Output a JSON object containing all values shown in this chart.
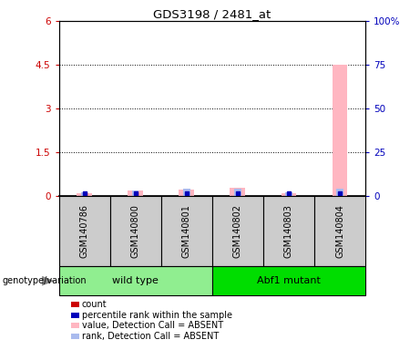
{
  "title": "GDS3198 / 2481_at",
  "samples": [
    "GSM140786",
    "GSM140800",
    "GSM140801",
    "GSM140802",
    "GSM140803",
    "GSM140804"
  ],
  "groups": [
    {
      "name": "wild type",
      "indices": [
        0,
        1,
        2
      ],
      "color": "#90EE90"
    },
    {
      "name": "Abf1 mutant",
      "indices": [
        3,
        4,
        5
      ],
      "color": "#00DD00"
    }
  ],
  "pink_bars": [
    0.1,
    0.18,
    0.22,
    0.28,
    0.1,
    4.5
  ],
  "blue_bars_pct": [
    2.0,
    3.0,
    4.0,
    4.0,
    2.0,
    4.0
  ],
  "ylim_left": [
    0,
    6
  ],
  "ylim_right": [
    0,
    100
  ],
  "yticks_left": [
    0,
    1.5,
    3.0,
    4.5,
    6.0
  ],
  "ytick_labels_left": [
    "0",
    "1.5",
    "3",
    "4.5",
    "6"
  ],
  "yticks_right": [
    0,
    25,
    50,
    75,
    100
  ],
  "ytick_labels_right": [
    "0",
    "25",
    "50",
    "75",
    "100%"
  ],
  "left_axis_color": "#CC0000",
  "right_axis_color": "#0000BB",
  "pink_color": "#FFB6C1",
  "blue_color": "#AABBEE",
  "red_marker_color": "#CC0000",
  "blue_marker_color": "#0000BB",
  "bar_width": 0.3,
  "bg_gray": "#CCCCCC",
  "legend_items": [
    {
      "color": "#CC0000",
      "label": "count"
    },
    {
      "color": "#0000BB",
      "label": "percentile rank within the sample"
    },
    {
      "color": "#FFB6C1",
      "label": "value, Detection Call = ABSENT"
    },
    {
      "color": "#AABBEE",
      "label": "rank, Detection Call = ABSENT"
    }
  ],
  "genotype_label": "genotype/variation"
}
